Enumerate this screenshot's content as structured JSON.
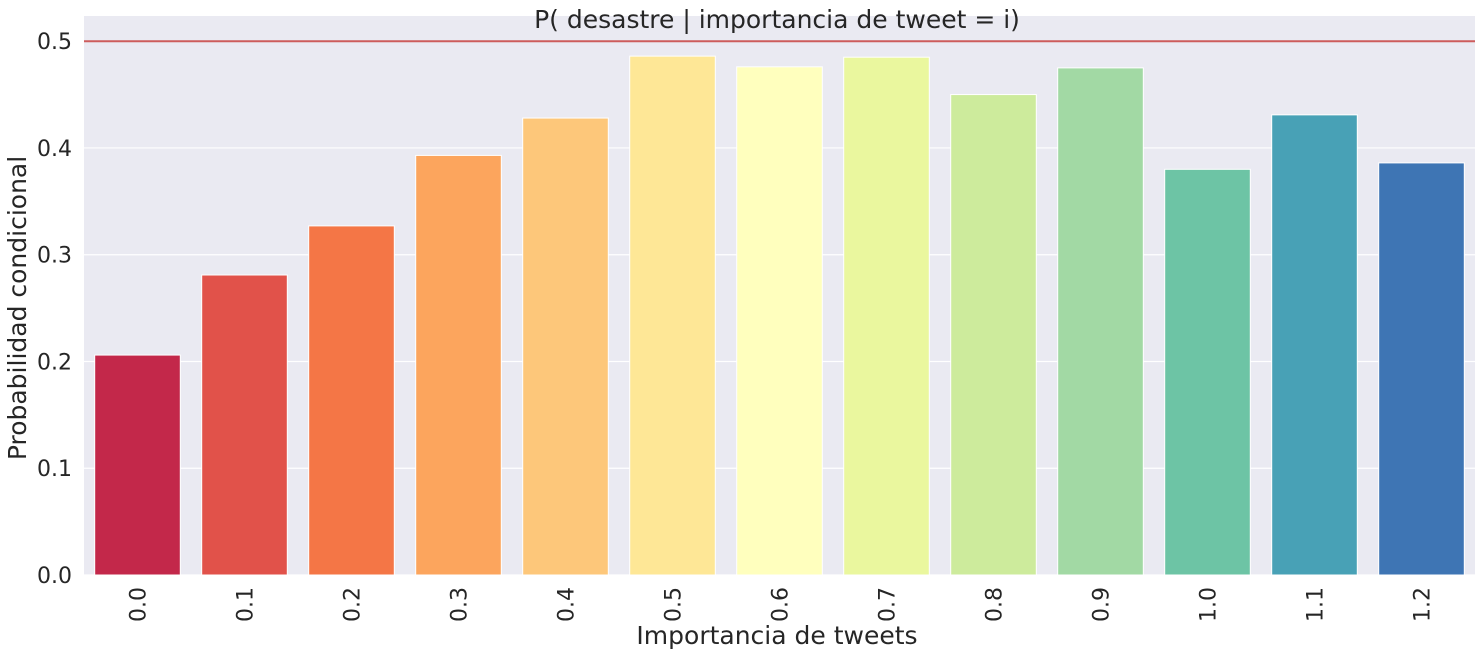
{
  "chart_data": {
    "type": "bar",
    "title": "P( desastre | importancia de tweet = i)",
    "xlabel": "Importancia de tweets",
    "ylabel": "Probabilidad condicional",
    "categories": [
      "0.0",
      "0.1",
      "0.2",
      "0.3",
      "0.4",
      "0.5",
      "0.6",
      "0.7",
      "0.8",
      "0.9",
      "1.0",
      "1.1",
      "1.2"
    ],
    "values": [
      0.206,
      0.281,
      0.327,
      0.393,
      0.428,
      0.486,
      0.476,
      0.485,
      0.45,
      0.475,
      0.38,
      0.431,
      0.386
    ],
    "colors": [
      "#c3284a",
      "#e1524a",
      "#f47646",
      "#fca55d",
      "#fdc77a",
      "#fee796",
      "#ffffbe",
      "#eaf79e",
      "#cdeb9c",
      "#a2d9a4",
      "#6dc4a5",
      "#48a1b6",
      "#3e75b4"
    ],
    "ylim": [
      0,
      0.5
    ],
    "yticks": [
      "0.0",
      "0.1",
      "0.2",
      "0.3",
      "0.4",
      "0.5"
    ],
    "reference_line": {
      "y": 0.5,
      "color": "#cd5c5c"
    },
    "grid": true,
    "background": "#eaeaf2"
  }
}
